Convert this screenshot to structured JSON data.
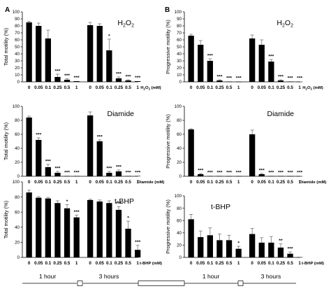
{
  "panel_labels": [
    "A",
    "B"
  ],
  "chart_data": [
    {
      "type": "bar",
      "panel": "A",
      "title_main": "H",
      "title_sub": "2",
      "title_rest": "O",
      "title_sub2": "2",
      "ylabel": "Total motility (%)",
      "ylim": [
        0,
        100
      ],
      "yticks": [
        "0",
        "10",
        "20",
        "30",
        "40",
        "50",
        "60",
        "70",
        "80",
        "90",
        "100"
      ],
      "categories": [
        "0",
        "0.05",
        "0.1",
        "0.25",
        "0.5",
        "1",
        "0",
        "0.05",
        "0.1",
        "0.25",
        "0.5",
        "1"
      ],
      "unit_main": "H",
      "unit_sub": "2",
      "unit_rest": "O",
      "unit_sub2": "2",
      "unit_tail": " (mM)",
      "values": [
        85,
        80,
        62,
        7,
        3,
        1,
        81,
        80,
        45,
        5,
        2,
        1
      ],
      "errors": [
        1.5,
        4,
        12,
        4,
        1.5,
        0.5,
        4,
        3,
        16,
        2,
        1,
        0.5
      ],
      "significance": [
        "",
        "",
        "",
        "***",
        "***",
        "***",
        "",
        "",
        "*",
        "***",
        "***",
        "***"
      ]
    },
    {
      "type": "bar",
      "panel": "B",
      "title_main": "H",
      "title_sub": "2",
      "title_rest": "O",
      "title_sub2": "2",
      "ylabel": "Progressive motility (%)",
      "ylim": [
        0,
        100
      ],
      "yticks": [
        "0",
        "10",
        "20",
        "30",
        "40",
        "50",
        "60",
        "70",
        "80",
        "90",
        "100"
      ],
      "categories": [
        "0",
        "0.05",
        "0.1",
        "0.25",
        "0.5",
        "1",
        "0",
        "0.05",
        "0.1",
        "0.25",
        "0.5",
        "1"
      ],
      "unit_main": "H",
      "unit_sub": "2",
      "unit_rest": "O",
      "unit_sub2": "2",
      "unit_tail": " (mM)",
      "values": [
        66,
        53,
        30,
        2,
        0.5,
        0.3,
        62,
        53,
        29,
        2,
        0.5,
        0.3
      ],
      "errors": [
        2,
        6,
        3,
        1,
        0.3,
        0.2,
        5,
        7,
        3,
        1,
        0.3,
        0.2
      ],
      "significance": [
        "",
        "",
        "***",
        "***",
        "***",
        "***",
        "",
        "",
        "***",
        "***",
        "***",
        "***"
      ]
    },
    {
      "type": "bar",
      "panel": "A",
      "title": "Diamide",
      "ylabel": "Total motility (%)",
      "ylim": [
        0,
        100
      ],
      "yticks": [
        "0",
        "20",
        "40",
        "60",
        "80",
        "100"
      ],
      "categories": [
        "0",
        "0.05",
        "0.1",
        "0.25",
        "0.5",
        "1",
        "0",
        "0.05",
        "0.1",
        "0.25",
        "0.5",
        "1"
      ],
      "unit": "Diamide  (mM)",
      "values": [
        84,
        52,
        13,
        5,
        0.5,
        0.5,
        87,
        50,
        5,
        7,
        0.5,
        0.5
      ],
      "errors": [
        2,
        3,
        4,
        2,
        0.3,
        0.3,
        5,
        2,
        2,
        2,
        0.3,
        0.3
      ],
      "significance": [
        "",
        "***",
        "***",
        "***",
        "***",
        "***",
        "",
        "***",
        "***",
        "***",
        "***",
        "***"
      ]
    },
    {
      "type": "bar",
      "panel": "B",
      "title": "Diamide",
      "ylabel": "Progressive motility (%)",
      "ylim": [
        0,
        100
      ],
      "yticks": [
        "0",
        "20",
        "40",
        "60",
        "80",
        "100"
      ],
      "categories": [
        "0",
        "0.05",
        "0.1",
        "0.25",
        "0.5",
        "1",
        "0",
        "0.05",
        "0.1",
        "0.25",
        "0.5",
        "1"
      ],
      "unit": "Diamide  (mM)",
      "values": [
        67,
        3,
        0.5,
        0.5,
        0.3,
        0.3,
        60,
        3,
        0.5,
        0.5,
        0.3,
        0.3
      ],
      "errors": [
        1,
        1,
        0.3,
        0.3,
        0.2,
        0.2,
        6,
        1,
        0.3,
        0.3,
        0.2,
        0.2
      ],
      "significance": [
        "",
        "***",
        "***",
        "***",
        "***",
        "***",
        "",
        "***",
        "***",
        "***",
        "***",
        "***"
      ]
    },
    {
      "type": "bar",
      "panel": "A",
      "title": "t-BHP",
      "ylabel": "Total motility (%)",
      "ylim": [
        0,
        100
      ],
      "yticks": [
        "0",
        "20",
        "40",
        "60",
        "80",
        "100"
      ],
      "categories": [
        "0",
        "0.05",
        "0.1",
        "0.25",
        "0.5",
        "1",
        "0",
        "0.05",
        "0.1",
        "0.25",
        "0.5",
        "1"
      ],
      "unit": "t-BHP (mM)",
      "values": [
        86,
        79,
        78,
        72,
        65,
        53,
        76,
        74,
        72,
        63,
        38,
        10
      ],
      "errors": [
        3,
        1.5,
        1.5,
        3,
        5,
        3,
        1,
        2,
        3,
        4,
        10,
        6
      ],
      "significance": [
        "",
        "",
        "",
        "",
        "*",
        "***",
        "",
        "",
        "",
        "***",
        "*",
        "***"
      ]
    },
    {
      "type": "bar",
      "panel": "B",
      "title": "t-BHP",
      "ylabel": "Progressive motility (%)",
      "ylim": [
        0,
        100
      ],
      "yticks": [
        "0",
        "20",
        "40",
        "60",
        "80",
        "100"
      ],
      "categories": [
        "0",
        "0.05",
        "0.1",
        "0.25",
        "0.5",
        "1",
        "0",
        "0.05",
        "0.1",
        "0.25",
        "0.5",
        "1"
      ],
      "unit": "t-BHP (mM)",
      "values": [
        62,
        33,
        36,
        28,
        28,
        14,
        38,
        24,
        24,
        16,
        6,
        0.5
      ],
      "errors": [
        8,
        10,
        12,
        10,
        8,
        4,
        9,
        8,
        10,
        6,
        3,
        0.3
      ],
      "significance": [
        "",
        "",
        "",
        "",
        "",
        "*",
        "",
        "",
        "",
        "**",
        "***",
        ""
      ]
    }
  ],
  "time_groups": [
    "1 hour",
    "3 hours",
    "1 hour",
    "3 hours"
  ]
}
